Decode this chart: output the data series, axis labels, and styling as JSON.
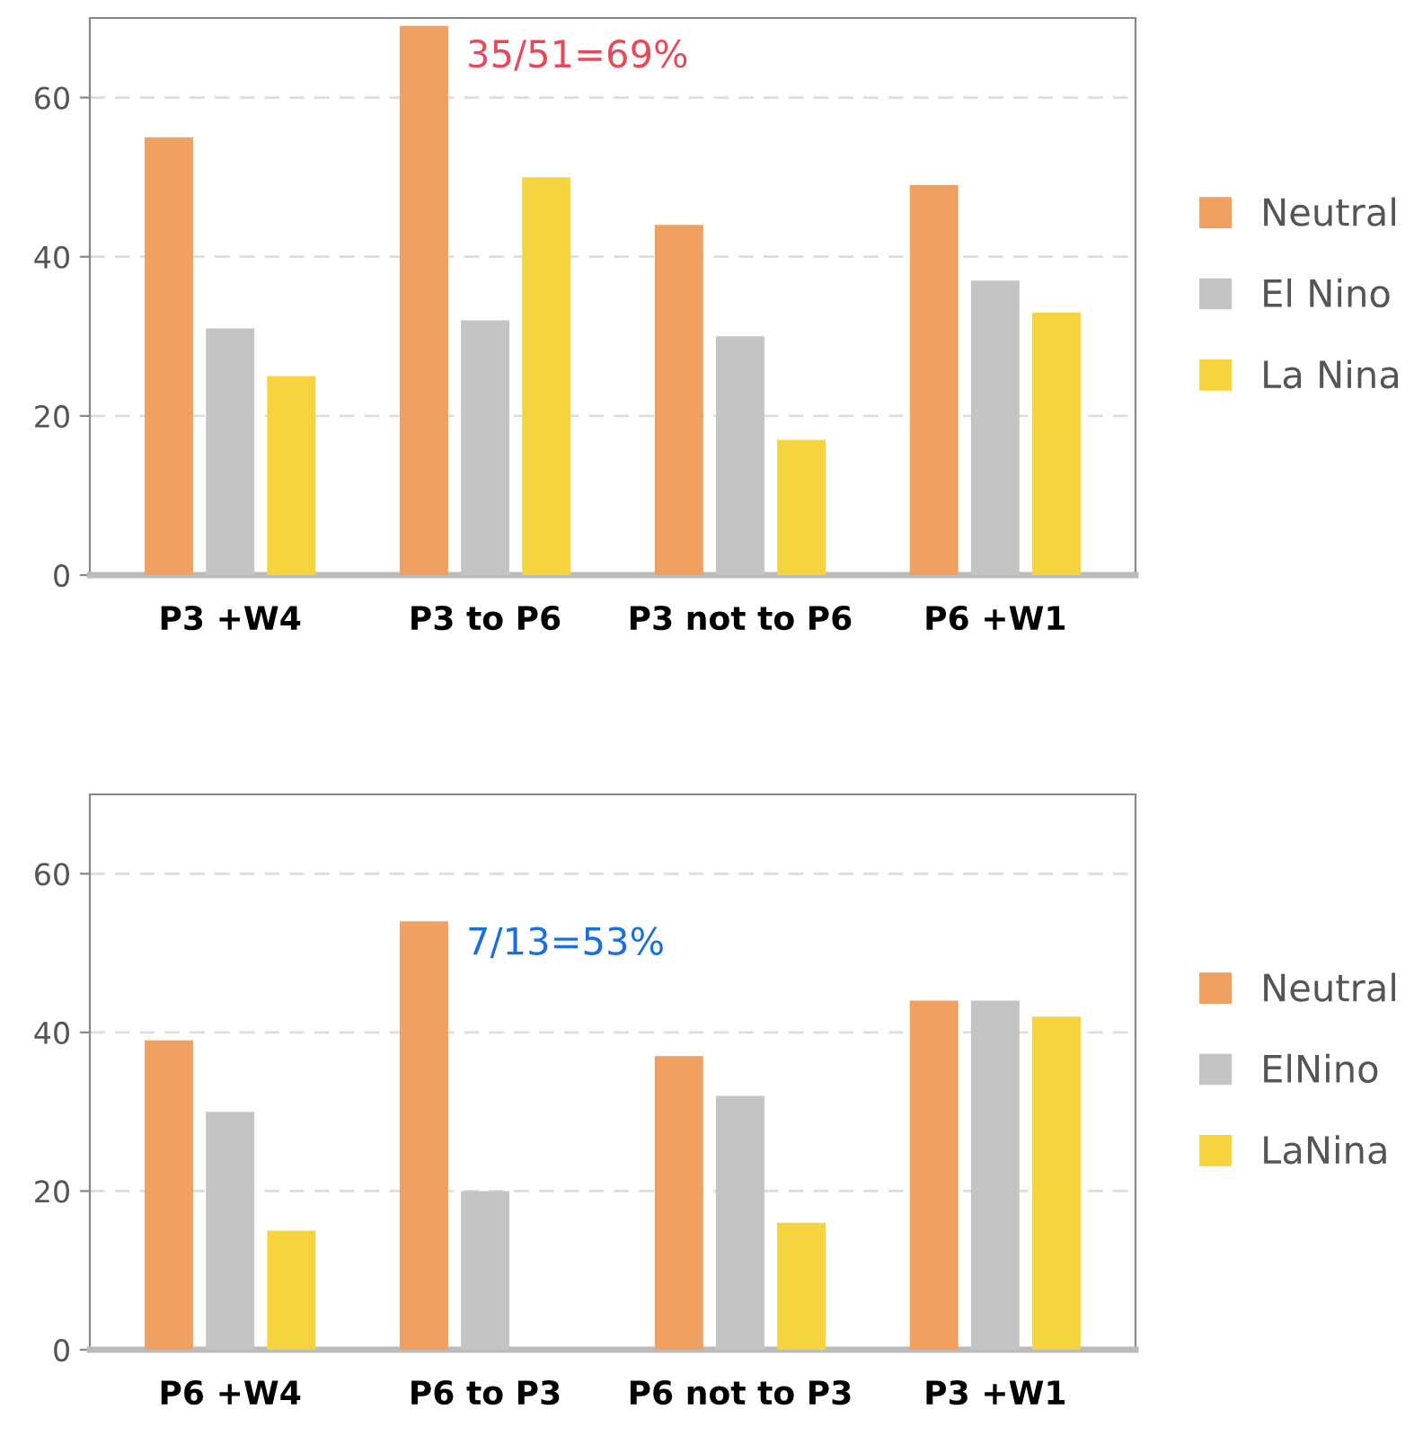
{
  "chart_data": [
    {
      "type": "bar",
      "categories": [
        "P3 +W4",
        "P3 to P6",
        "P3 not to P6",
        "P6 +W1"
      ],
      "series": [
        {
          "name": "Neutral",
          "color": "#f0a060",
          "values": [
            55,
            69,
            44,
            49
          ]
        },
        {
          "name": "El Nino",
          "color": "#c4c4c4",
          "values": [
            31,
            32,
            30,
            37
          ]
        },
        {
          "name": "La Nina",
          "color": "#f5d440",
          "values": [
            25,
            50,
            17,
            33
          ]
        }
      ],
      "ylim": [
        0,
        70
      ],
      "yticks": [
        0,
        20,
        40,
        60
      ],
      "grid": "y",
      "legend": "right",
      "annotations": [
        "35/51=69%"
      ]
    },
    {
      "type": "bar",
      "categories": [
        "P6 +W4",
        "P6 to P3",
        "P6 not to P3",
        "P3 +W1"
      ],
      "series": [
        {
          "name": "Neutral",
          "color": "#f0a060",
          "values": [
            39,
            54,
            37,
            44
          ]
        },
        {
          "name": "ElNino",
          "color": "#c4c4c4",
          "values": [
            30,
            20,
            32,
            44
          ]
        },
        {
          "name": "LaNina",
          "color": "#f5d440",
          "values": [
            15,
            null,
            16,
            42
          ]
        }
      ],
      "ylim": [
        0,
        70
      ],
      "yticks": [
        0,
        20,
        40,
        60
      ],
      "grid": "y",
      "legend": "right",
      "annotations": [
        "7/13=53%"
      ]
    }
  ]
}
